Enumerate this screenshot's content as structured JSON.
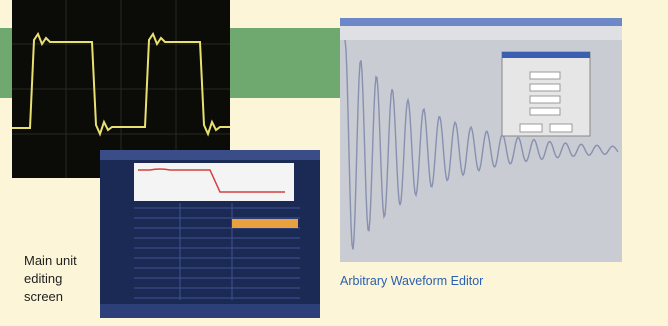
{
  "captions": {
    "main_unit": "Main unit editing screen",
    "editor": "Arbitrary Waveform Editor"
  }
}
